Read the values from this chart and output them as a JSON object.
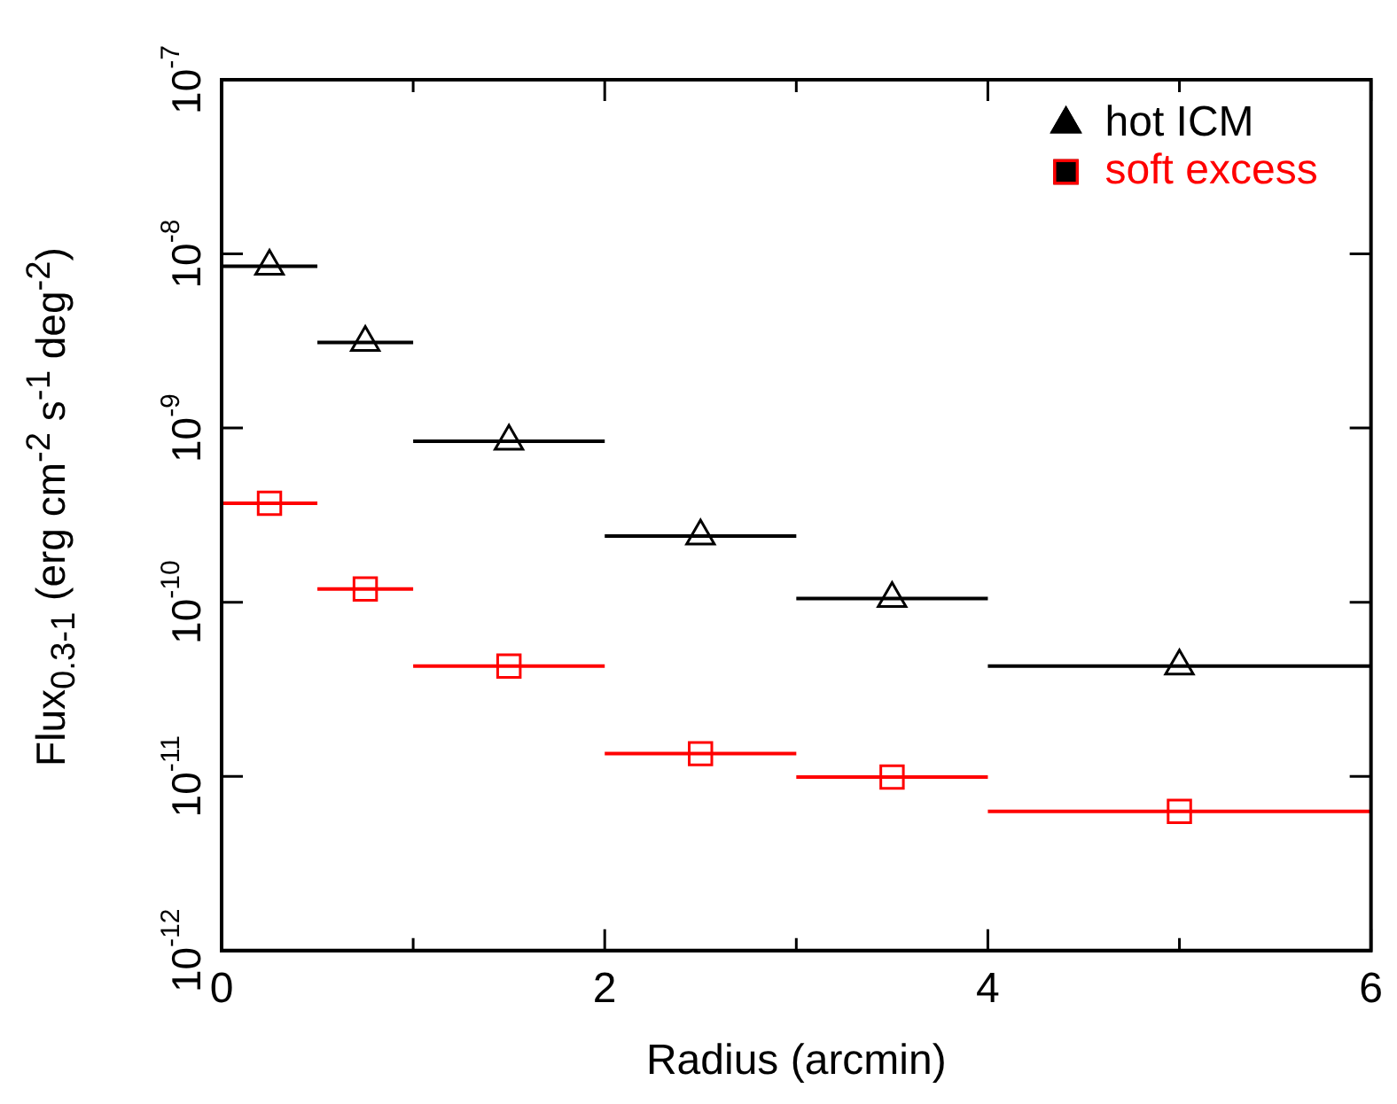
{
  "chart_data": {
    "type": "scatter",
    "xlabel": "Radius (arcmin)",
    "ylabel": "Flux$_{0.3-1}$ (erg cm$^{-2}$ s$^{-1}$ deg$^{-2}$)",
    "xlim": [
      0,
      6
    ],
    "xticks": [
      0,
      {
        "value": 1,
        "label": null
      },
      2,
      {
        "value": 3,
        "label": null
      },
      4,
      {
        "value": 5,
        "label": null
      },
      6
    ],
    "ylim": [
      1e-12,
      1e-07
    ],
    "yticks": [
      {
        "value": 1e-12,
        "label": "10$^{-12}$"
      },
      {
        "value": 1e-11,
        "label": "10$^{-11}$"
      },
      {
        "value": 1e-10,
        "label": "10$^{-10}$"
      },
      {
        "value": 1e-09,
        "label": "10$^{-9}$"
      },
      {
        "value": 1e-08,
        "label": "10$^{-8}$"
      },
      {
        "value": 1e-07,
        "label": "10$^{-7}$"
      }
    ],
    "log": "y",
    "grid": false,
    "legend": "top right",
    "series": [
      {
        "name": "hot ICM",
        "color": "#000000",
        "marker": "triangle",
        "x": [
          0.25,
          0.75,
          1.5,
          2.5,
          3.5,
          5
        ],
        "values": [
          8.5e-09,
          3.1e-09,
          8.4e-10,
          2.4e-10,
          1.05e-10,
          4.3e-11
        ],
        "xerrors": [
          0.25,
          0.25,
          0.5,
          0.5,
          0.5,
          1
        ]
      },
      {
        "name": "soft excess",
        "color": "#ff0000",
        "marker": "square",
        "x": [
          0.25,
          0.75,
          1.5,
          2.5,
          3.5,
          5
        ],
        "values": [
          3.7e-10,
          1.19e-10,
          4.3e-11,
          1.35e-11,
          9.9e-12,
          6.3e-12
        ],
        "xerrors": [
          0.25,
          0.25,
          0.5,
          0.5,
          0.5,
          1
        ]
      }
    ]
  }
}
